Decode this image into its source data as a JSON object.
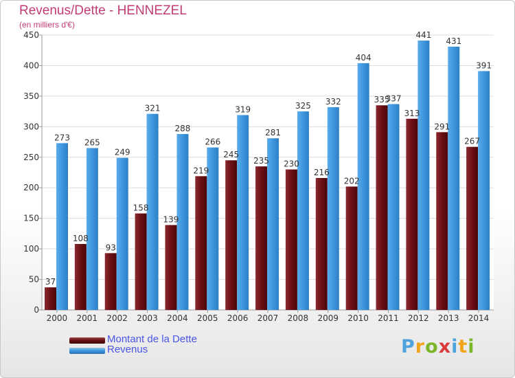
{
  "header": {
    "title": "Revenus/Dette - HENNEZEL",
    "subtitle": "(en milliers d'€)"
  },
  "legend": {
    "items": [
      {
        "label": "Montant de la Dette",
        "color": "#6b0f14"
      },
      {
        "label": "Revenus",
        "color": "#3d96de"
      }
    ]
  },
  "logo": {
    "text": "Proxiti"
  },
  "chart_data": {
    "type": "bar",
    "title": "Revenus/Dette - HENNEZEL",
    "subtitle": "(en milliers d'€)",
    "categories": [
      "2000",
      "2001",
      "2002",
      "2003",
      "2004",
      "2005",
      "2006",
      "2007",
      "2008",
      "2009",
      "2010",
      "2011",
      "2012",
      "2013",
      "2014"
    ],
    "series": [
      {
        "name": "Montant de la Dette",
        "color": "#6b0f14",
        "values": [
          37,
          108,
          93,
          158,
          139,
          219,
          245,
          235,
          230,
          216,
          202,
          335,
          313,
          291,
          267
        ]
      },
      {
        "name": "Revenus",
        "color": "#3d96de",
        "values": [
          273,
          265,
          249,
          321,
          288,
          266,
          319,
          281,
          325,
          332,
          404,
          337,
          441,
          431,
          391
        ]
      }
    ],
    "ylim": [
      0,
      450
    ],
    "yticks": [
      0,
      50,
      100,
      150,
      200,
      250,
      300,
      350,
      400,
      450
    ],
    "grid": true,
    "legend_position": "bottom-left"
  }
}
